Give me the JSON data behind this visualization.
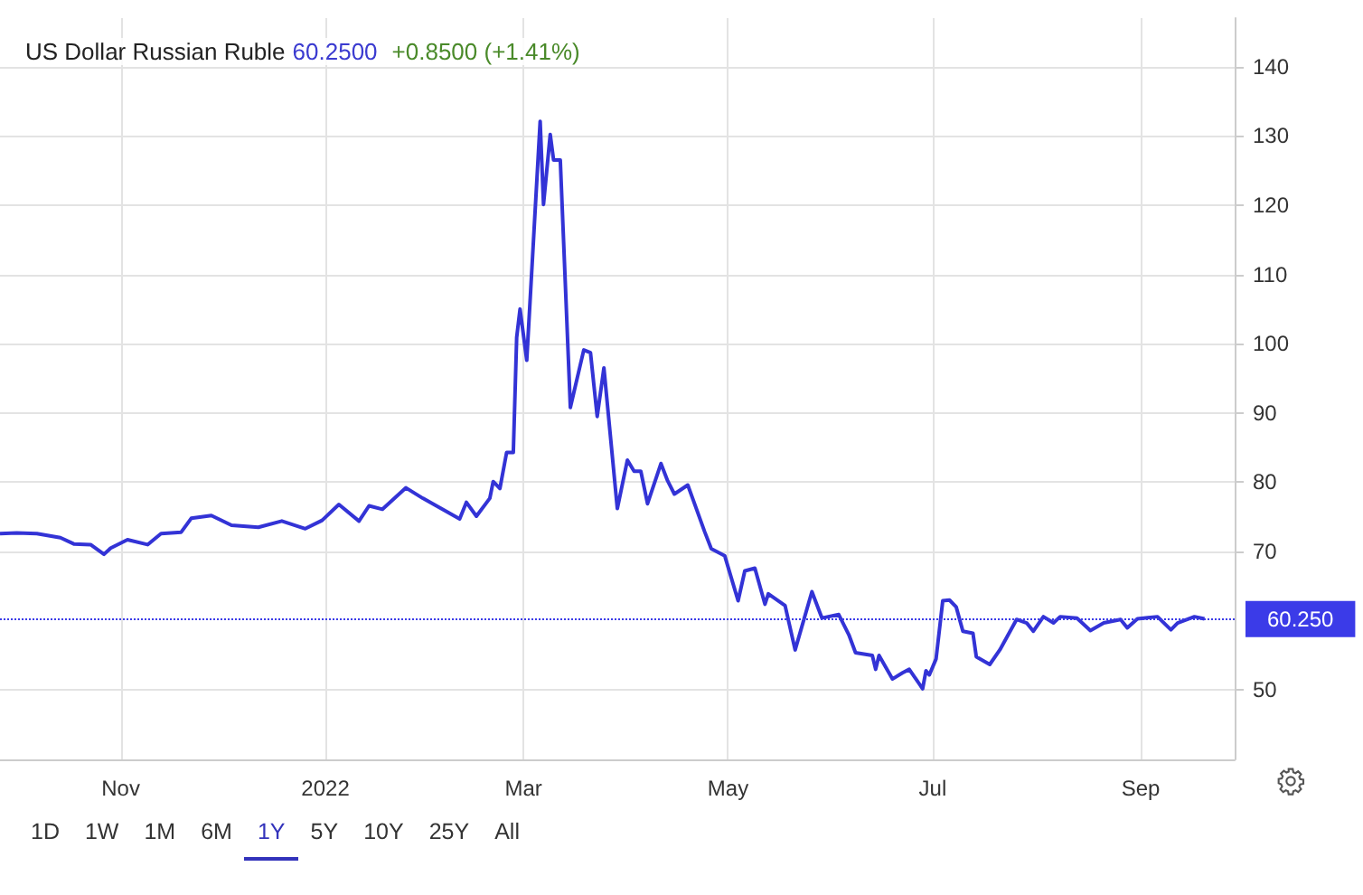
{
  "chart_data": {
    "type": "line",
    "title": "US Dollar Russian Ruble",
    "annotations": [
      "60.2500",
      "+0.8500 (+1.41%)",
      "1D",
      "1W",
      "1M",
      "6M",
      "1Y",
      "5Y",
      "10Y",
      "25Y",
      "All"
    ],
    "series": [
      {
        "color": "#3333d6",
        "x": [
          "2021-09-26",
          "2021-10-01",
          "2021-10-07",
          "2021-10-14",
          "2021-10-18",
          "2021-10-23",
          "2021-10-27",
          "2021-10-29",
          "2021-11-03",
          "2021-11-09",
          "2021-11-13",
          "2021-11-19",
          "2021-11-22",
          "2021-11-28",
          "2021-12-04",
          "2021-12-12",
          "2021-12-19",
          "2021-12-26",
          "2021-12-31",
          "2022-01-05",
          "2022-01-11",
          "2022-01-14",
          "2022-01-18",
          "2022-01-25",
          "2022-01-30",
          "2022-02-10",
          "2022-02-12",
          "2022-02-15",
          "2022-02-19",
          "2022-02-20",
          "2022-02-22",
          "2022-02-24",
          "2022-02-26",
          "2022-02-27",
          "2022-02-28",
          "2022-03-02",
          "2022-03-06",
          "2022-03-07",
          "2022-03-09",
          "2022-03-10",
          "2022-03-12",
          "2022-03-15",
          "2022-03-19",
          "2022-03-21",
          "2022-03-23",
          "2022-03-25",
          "2022-03-29",
          "2022-04-01",
          "2022-04-03",
          "2022-04-05",
          "2022-04-07",
          "2022-04-11",
          "2022-04-13",
          "2022-04-15",
          "2022-04-19",
          "2022-04-24",
          "2022-04-26",
          "2022-04-30",
          "2022-05-04",
          "2022-05-06",
          "2022-05-09",
          "2022-05-12",
          "2022-05-13",
          "2022-05-18",
          "2022-05-21",
          "2022-05-26",
          "2022-05-29",
          "2022-06-03",
          "2022-06-06",
          "2022-06-08",
          "2022-06-13",
          "2022-06-14",
          "2022-06-15",
          "2022-06-19",
          "2022-06-22",
          "2022-06-24",
          "2022-06-28",
          "2022-06-29",
          "2022-06-30",
          "2022-07-02",
          "2022-07-04",
          "2022-07-06",
          "2022-07-08",
          "2022-07-10",
          "2022-07-13",
          "2022-07-14",
          "2022-07-18",
          "2022-07-21",
          "2022-07-26",
          "2022-07-29",
          "2022-07-31",
          "2022-08-03",
          "2022-08-06",
          "2022-08-08",
          "2022-08-13",
          "2022-08-17",
          "2022-08-21",
          "2022-08-26",
          "2022-08-28",
          "2022-08-31",
          "2022-09-06",
          "2022-09-10",
          "2022-09-12",
          "2022-09-17",
          "2022-09-20"
        ],
        "values": [
          72.6,
          72.7,
          72.6,
          72.0,
          71.1,
          71.0,
          69.6,
          70.5,
          71.7,
          71.0,
          72.6,
          72.8,
          74.8,
          75.2,
          73.8,
          73.5,
          74.4,
          73.3,
          74.5,
          76.8,
          74.4,
          76.6,
          76.1,
          79.2,
          77.7,
          74.7,
          77.1,
          75.1,
          77.7,
          80.1,
          79.1,
          84.3,
          84.3,
          100.9,
          105.0,
          97.6,
          132.1,
          120.1,
          130.2,
          126.5,
          126.5,
          90.8,
          99.1,
          98.7,
          89.5,
          96.5,
          76.2,
          83.2,
          81.6,
          81.6,
          76.9,
          82.7,
          80.2,
          78.3,
          79.6,
          72.9,
          70.4,
          69.4,
          62.9,
          67.2,
          67.6,
          62.4,
          63.9,
          62.2,
          55.8,
          64.2,
          60.4,
          60.9,
          58.0,
          55.4,
          55.0,
          53.0,
          55.0,
          51.6,
          52.5,
          53.0,
          50.2,
          52.8,
          52.2,
          54.5,
          62.9,
          63.0,
          62.0,
          58.5,
          58.2,
          54.8,
          53.7,
          55.8,
          60.2,
          59.7,
          58.5,
          60.6,
          59.7,
          60.6,
          60.4,
          58.6,
          59.7,
          60.2,
          59.0,
          60.3,
          60.6,
          58.7,
          59.7,
          60.6,
          60.3
        ]
      }
    ],
    "xlim": [
      "2021-09-26",
      "2022-09-29"
    ],
    "xticks": [
      {
        "value": "2021-11-01",
        "label": "Nov"
      },
      {
        "value": "2022-01-01",
        "label": "2022"
      },
      {
        "value": "2022-03-01",
        "label": "Mar"
      },
      {
        "value": "2022-05-01",
        "label": "May"
      },
      {
        "value": "2022-07-01",
        "label": "Jul"
      },
      {
        "value": "2022-09-01",
        "label": "Sep"
      }
    ],
    "ylim": [
      40,
      147
    ],
    "yticks": [
      50,
      70,
      80,
      90,
      100,
      110,
      120,
      130,
      140
    ],
    "ref_lines": [
      {
        "axis": "y",
        "value": 60.25,
        "label": "60.250",
        "color": "#3b3be8",
        "line_style": "dotted"
      }
    ],
    "grid": true,
    "marker": "none",
    "line_style": "solid"
  }
}
